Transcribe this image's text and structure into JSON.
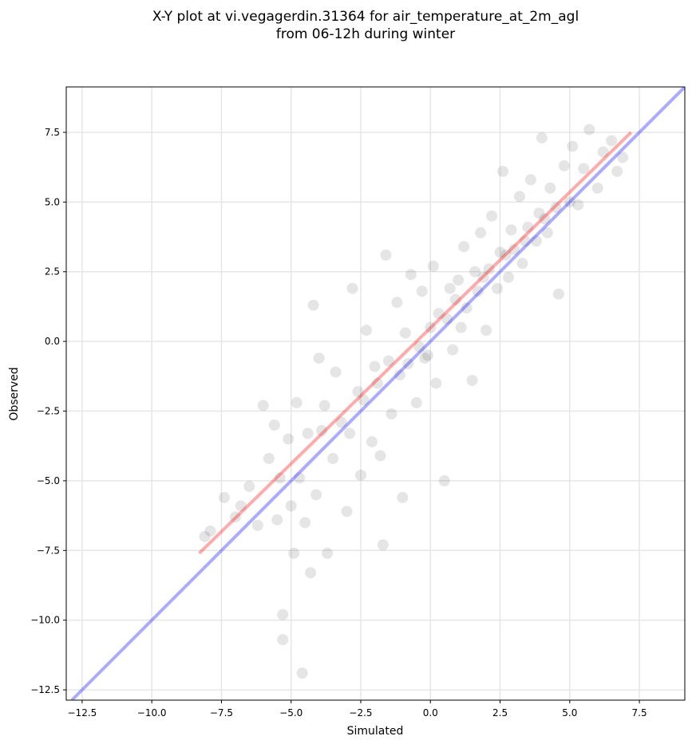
{
  "chart_data": {
    "type": "scatter",
    "title": [
      "X-Y plot at vi.vegagerdin.31364 for air_temperature_at_2m_agl",
      "from 06-12h during winter"
    ],
    "x_label": "Simulated",
    "y_label": "Observed",
    "xlim": [
      -13.07,
      9.13
    ],
    "ylim": [
      -12.87,
      9.13
    ],
    "xticks": [
      {
        "value": -12.5,
        "label": "−12.5"
      },
      {
        "value": -10,
        "label": "−10.0"
      },
      {
        "value": -7.5,
        "label": "−7.5"
      },
      {
        "value": -5,
        "label": "−5.0"
      },
      {
        "value": -2.5,
        "label": "−2.5"
      },
      {
        "value": 0,
        "label": "0.0"
      },
      2.5,
      {
        "value": 5,
        "label": "5.0"
      },
      7.5
    ],
    "yticks": [
      {
        "value": -12.5,
        "label": "−12.5"
      },
      {
        "value": -10,
        "label": "−10.0"
      },
      {
        "value": -7.5,
        "label": "−7.5"
      },
      {
        "value": -5,
        "label": "−5.0"
      },
      {
        "value": -2.5,
        "label": "−2.5"
      },
      {
        "value": 0,
        "label": "0.0"
      },
      2.5,
      {
        "value": 5,
        "label": "5.0"
      },
      7.5
    ],
    "grid": true,
    "series": [
      {
        "color": "#000000",
        "x": [
          -8.1,
          -7.9,
          -7.4,
          -7.0,
          -6.8,
          -6.5,
          -6.2,
          -6.0,
          -5.8,
          -5.6,
          -5.5,
          -5.4,
          -5.3,
          -5.3,
          -5.1,
          -5.0,
          -4.9,
          -4.8,
          -4.7,
          -4.6,
          -4.5,
          -4.4,
          -4.3,
          -4.2,
          -4.1,
          -4.0,
          -3.8,
          -3.7,
          -3.5,
          -3.4,
          -3.2,
          -3.0,
          -2.9,
          -2.8,
          -2.6,
          -2.5,
          -2.4,
          -2.3,
          -2.1,
          -2.0,
          -1.9,
          -1.8,
          -1.7,
          -1.6,
          -1.5,
          -1.4,
          -1.2,
          -1.1,
          -1.0,
          -0.9,
          -0.8,
          -0.7,
          -0.5,
          -0.4,
          -0.3,
          -0.2,
          0.0,
          0.1,
          0.2,
          0.3,
          0.5,
          0.6,
          0.7,
          0.8,
          1.0,
          1.1,
          1.2,
          1.3,
          1.5,
          1.6,
          1.7,
          1.8,
          2.0,
          2.1,
          2.2,
          2.4,
          2.5,
          2.6,
          2.8,
          2.9,
          3.0,
          3.2,
          3.3,
          3.5,
          3.6,
          3.8,
          3.9,
          4.0,
          4.2,
          4.3,
          4.5,
          4.6,
          4.8,
          5.0,
          5.1,
          5.3,
          5.5,
          5.7,
          6.0,
          6.2,
          6.5,
          6.7,
          6.9,
          -0.1,
          0.9,
          1.9,
          2.7,
          3.4,
          4.1,
          -3.9
        ],
        "y": [
          -7.0,
          -6.8,
          -5.6,
          -6.3,
          -5.9,
          -5.2,
          -6.6,
          -2.3,
          -4.2,
          -3.0,
          -6.4,
          -4.9,
          -9.8,
          -10.7,
          -3.5,
          -5.9,
          -7.6,
          -2.2,
          -4.9,
          -11.9,
          -6.5,
          -3.3,
          -8.3,
          1.3,
          -5.5,
          -0.6,
          -2.3,
          -7.6,
          -4.2,
          -1.1,
          -2.9,
          -6.1,
          -3.3,
          1.9,
          -1.8,
          -4.8,
          -2.1,
          0.4,
          -3.6,
          -0.9,
          -1.5,
          -4.1,
          -7.3,
          3.1,
          -0.7,
          -2.6,
          1.4,
          -1.2,
          -5.6,
          0.3,
          -0.8,
          2.4,
          -2.2,
          -0.2,
          1.8,
          -0.6,
          0.5,
          2.7,
          -1.5,
          1.0,
          -5.0,
          0.8,
          1.9,
          -0.3,
          2.2,
          0.5,
          3.4,
          1.2,
          -1.4,
          2.5,
          1.8,
          3.9,
          0.4,
          2.6,
          4.5,
          1.9,
          3.2,
          6.1,
          2.3,
          4.0,
          3.3,
          5.2,
          2.8,
          4.1,
          5.8,
          3.6,
          4.6,
          7.3,
          3.9,
          5.5,
          4.8,
          1.7,
          6.3,
          5.0,
          7.0,
          4.9,
          6.2,
          7.6,
          5.5,
          6.8,
          7.2,
          6.1,
          6.6,
          -0.5,
          1.5,
          2.3,
          3.1,
          3.6,
          4.4,
          -3.2
        ]
      },
      {
        "type": "line",
        "color": "#0000ff",
        "x": [
          -12.87,
          9.13
        ],
        "y": [
          -12.87,
          9.13
        ]
      },
      {
        "type": "line",
        "color": "#ff0000",
        "x": [
          -8.3,
          7.2
        ],
        "y": [
          -7.6,
          7.5
        ]
      }
    ]
  }
}
